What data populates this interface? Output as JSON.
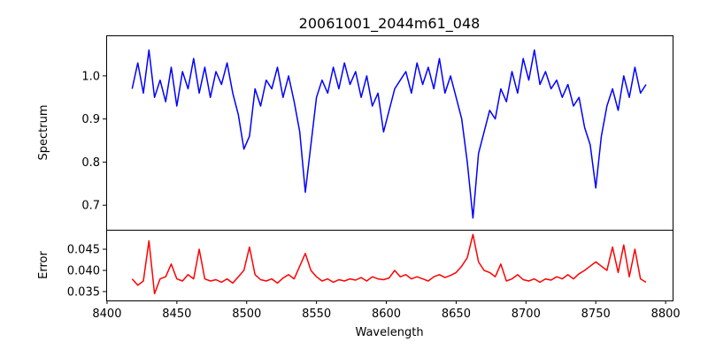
{
  "chart_data": [
    {
      "type": "line",
      "title": "20061001_2044m61_048",
      "xlabel": "",
      "ylabel": "Spectrum",
      "xlim": [
        8399.4,
        8805
      ],
      "ylim": [
        0.643,
        1.094
      ],
      "yticks": [
        "0.7",
        "0.8",
        "0.9",
        "1.0"
      ],
      "ytick_values": [
        0.7,
        0.8,
        0.9,
        1.0
      ],
      "grid": false,
      "series": [
        {
          "name": "Spectrum",
          "color": "#0000ff",
          "x_start": 8418,
          "x_step": 4,
          "values": [
            0.97,
            1.03,
            0.96,
            1.06,
            0.95,
            0.99,
            0.94,
            1.02,
            0.93,
            1.01,
            0.97,
            1.04,
            0.96,
            1.02,
            0.95,
            1.01,
            0.98,
            1.03,
            0.96,
            0.91,
            0.83,
            0.86,
            0.97,
            0.93,
            0.99,
            0.97,
            1.02,
            0.95,
            1.0,
            0.94,
            0.87,
            0.73,
            0.84,
            0.95,
            0.99,
            0.96,
            1.02,
            0.97,
            1.03,
            0.98,
            1.01,
            0.95,
            1.0,
            0.93,
            0.96,
            0.87,
            0.92,
            0.97,
            0.99,
            1.01,
            0.96,
            1.03,
            0.98,
            1.02,
            0.97,
            1.04,
            0.96,
            1.0,
            0.95,
            0.9,
            0.8,
            0.67,
            0.82,
            0.87,
            0.92,
            0.9,
            0.97,
            0.94,
            1.01,
            0.96,
            1.04,
            0.99,
            1.06,
            0.98,
            1.01,
            0.97,
            0.99,
            0.95,
            0.98,
            0.93,
            0.95,
            0.88,
            0.84,
            0.74,
            0.86,
            0.93,
            0.97,
            0.92,
            1.0,
            0.95,
            1.02,
            0.96,
            0.98
          ]
        }
      ]
    },
    {
      "type": "line",
      "title": "",
      "xlabel": "Wavelength",
      "ylabel": "Error",
      "xlim": [
        8399.4,
        8805
      ],
      "ylim": [
        0.0329,
        0.0496
      ],
      "xticks": [
        "8400",
        "8450",
        "8500",
        "8550",
        "8600",
        "8650",
        "8700",
        "8750",
        "8800"
      ],
      "xtick_values": [
        8400,
        8450,
        8500,
        8550,
        8600,
        8650,
        8700,
        8750,
        8800
      ],
      "yticks": [
        "0.035",
        "0.040",
        "0.045"
      ],
      "ytick_values": [
        0.035,
        0.04,
        0.045
      ],
      "grid": false,
      "series": [
        {
          "name": "Error",
          "color": "#ff0000",
          "x_start": 8418,
          "x_step": 4,
          "values": [
            0.038,
            0.0365,
            0.0375,
            0.047,
            0.0345,
            0.038,
            0.0385,
            0.0415,
            0.038,
            0.0375,
            0.039,
            0.038,
            0.045,
            0.038,
            0.0375,
            0.0378,
            0.0372,
            0.038,
            0.037,
            0.0385,
            0.04,
            0.0455,
            0.039,
            0.0378,
            0.0375,
            0.038,
            0.037,
            0.0382,
            0.039,
            0.038,
            0.041,
            0.044,
            0.04,
            0.0385,
            0.0375,
            0.038,
            0.0372,
            0.0378,
            0.0375,
            0.038,
            0.0377,
            0.0383,
            0.0375,
            0.0385,
            0.038,
            0.0378,
            0.0382,
            0.04,
            0.0385,
            0.039,
            0.038,
            0.0385,
            0.038,
            0.0375,
            0.0385,
            0.039,
            0.0383,
            0.0388,
            0.0395,
            0.041,
            0.043,
            0.0485,
            0.042,
            0.04,
            0.0395,
            0.0385,
            0.0415,
            0.0375,
            0.038,
            0.039,
            0.0378,
            0.0375,
            0.038,
            0.0372,
            0.038,
            0.0377,
            0.0385,
            0.038,
            0.039,
            0.038,
            0.0392,
            0.04,
            0.041,
            0.042,
            0.041,
            0.04,
            0.0455,
            0.0395,
            0.046,
            0.0385,
            0.045,
            0.038,
            0.0372
          ]
        }
      ]
    }
  ]
}
